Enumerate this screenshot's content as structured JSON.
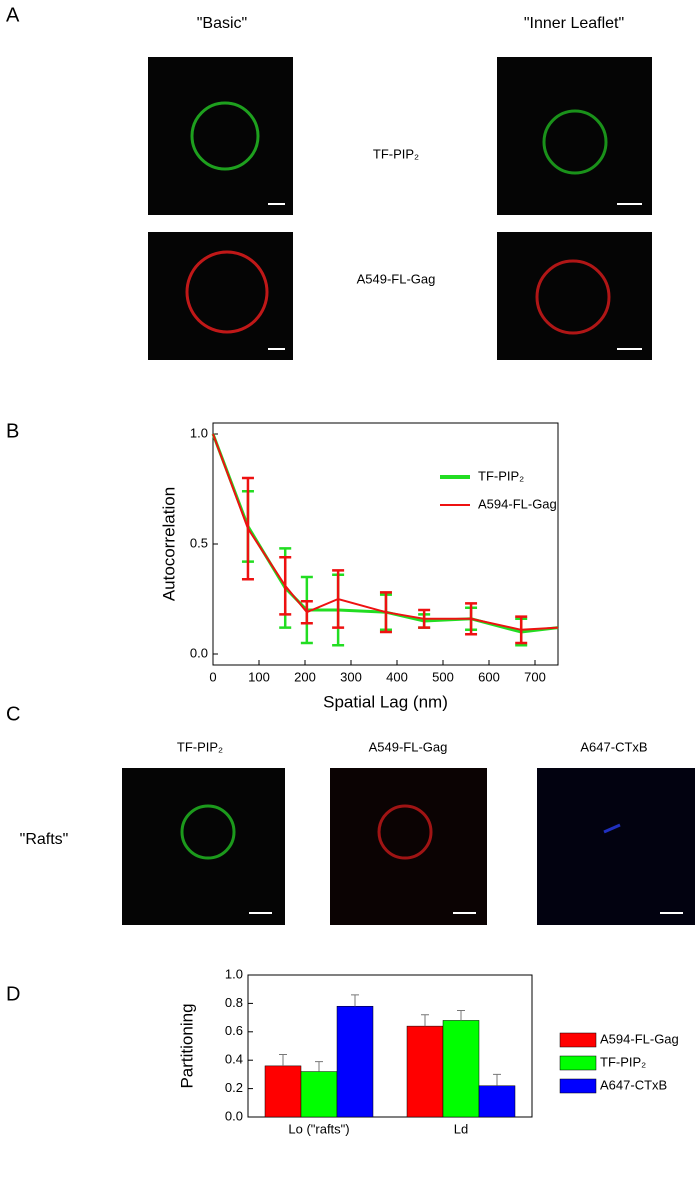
{
  "figure": {
    "panel_labels": [
      "A",
      "B",
      "C",
      "D"
    ],
    "a_headers": [
      "\"Basic\"",
      "\"Inner Leaflet\""
    ],
    "a_rows": [
      "TF-PIP₂",
      "A549-FL-Gag"
    ],
    "c_headers": [
      "TF-PIP₂",
      "A549-FL-Gag",
      "A647-CTxB"
    ],
    "c_row": "\"Rafts\""
  },
  "chart_data": [
    {
      "type": "line",
      "xlabel": "Spatial Lag (nm)",
      "ylabel": "Autocorrelation",
      "x": [
        0,
        76,
        157,
        204,
        272,
        376,
        459,
        561,
        670,
        750
      ],
      "xlim": [
        0,
        750
      ],
      "xticks": [
        0,
        100,
        200,
        300,
        400,
        500,
        600,
        700
      ],
      "ylim": [
        -0.05,
        1.05
      ],
      "yticks": [
        {
          "value": 0,
          "label": "0.0"
        },
        {
          "value": 0.5,
          "label": "0.5"
        },
        {
          "value": 1,
          "label": "1.0"
        }
      ],
      "series": [
        {
          "name": "TF-PIP₂",
          "color": "#22dd22",
          "values": [
            1.0,
            0.58,
            0.3,
            0.2,
            0.2,
            0.19,
            0.15,
            0.16,
            0.1,
            0.12
          ],
          "errors": [
            null,
            0.16,
            0.18,
            0.15,
            0.16,
            0.08,
            0.03,
            0.05,
            0.06,
            null
          ]
        },
        {
          "name": "A594-FL-Gag",
          "color": "#ee1111",
          "values": [
            1.0,
            0.57,
            0.31,
            0.19,
            0.25,
            0.19,
            0.16,
            0.16,
            0.11,
            0.12
          ],
          "errors": [
            null,
            0.23,
            0.13,
            0.05,
            0.13,
            0.09,
            0.04,
            0.07,
            0.06,
            null
          ]
        }
      ]
    },
    {
      "type": "bar",
      "ylabel": "Partitioning",
      "categories": [
        "Lo (\"rafts\")",
        "Ld"
      ],
      "ylim": [
        0,
        1
      ],
      "yticks": [
        {
          "value": 0,
          "label": "0.0"
        },
        {
          "value": 0.2,
          "label": "0.2"
        },
        {
          "value": 0.4,
          "label": "0.4"
        },
        {
          "value": 0.6,
          "label": "0.6"
        },
        {
          "value": 0.8,
          "label": "0.8"
        },
        {
          "value": 1,
          "label": "1.0"
        }
      ],
      "series": [
        {
          "name": "A594-FL-Gag",
          "color": "#ff0000",
          "values": [
            0.36,
            0.64
          ],
          "errors": [
            0.08,
            0.08
          ]
        },
        {
          "name": "TF-PIP₂",
          "color": "#00ff00",
          "values": [
            0.32,
            0.68
          ],
          "errors": [
            0.07,
            0.07
          ]
        },
        {
          "name": "A647-CTxB",
          "color": "#0000ff",
          "values": [
            0.78,
            0.22
          ],
          "errors": [
            0.08,
            0.08
          ]
        }
      ]
    }
  ]
}
